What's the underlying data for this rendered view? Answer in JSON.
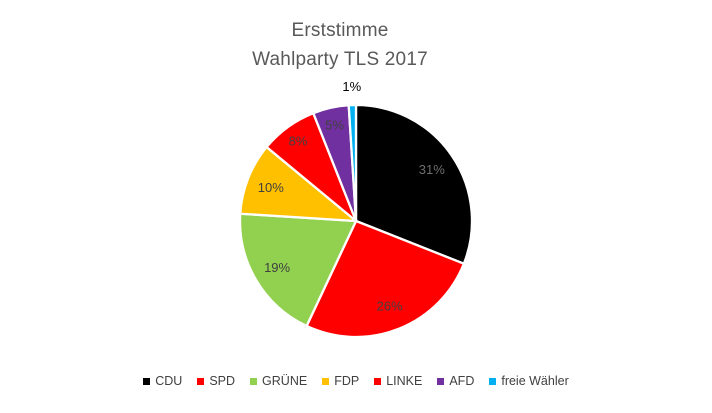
{
  "title": {
    "line1": "Erststimme",
    "line2": "Wahlparty TLS 2017"
  },
  "chart_data": {
    "type": "pie",
    "title": "Erststimme Wahlparty TLS 2017",
    "legend_position": "bottom",
    "start_angle_deg": 0,
    "direction": "clockwise",
    "slice_border_color": "#ffffff",
    "title_color": "#595959",
    "label_color": "#404040",
    "label_color_on_black": "#6e6e6e",
    "series": [
      {
        "name": "CDU",
        "value": 31,
        "label": "31%",
        "color": "#000000"
      },
      {
        "name": "SPD",
        "value": 26,
        "label": "26%",
        "color": "#FF0000"
      },
      {
        "name": "GRÜNE",
        "value": 19,
        "label": "19%",
        "color": "#92D050"
      },
      {
        "name": "FDP",
        "value": 10,
        "label": "10%",
        "color": "#FFC000"
      },
      {
        "name": "LINKE",
        "value": 8,
        "label": "8%",
        "color": "#FF0000"
      },
      {
        "name": "AFD",
        "value": 5,
        "label": "5%",
        "color": "#7030A0"
      },
      {
        "name": "freie Wähler",
        "value": 1,
        "label": "1%",
        "color": "#00B0F0"
      }
    ]
  }
}
